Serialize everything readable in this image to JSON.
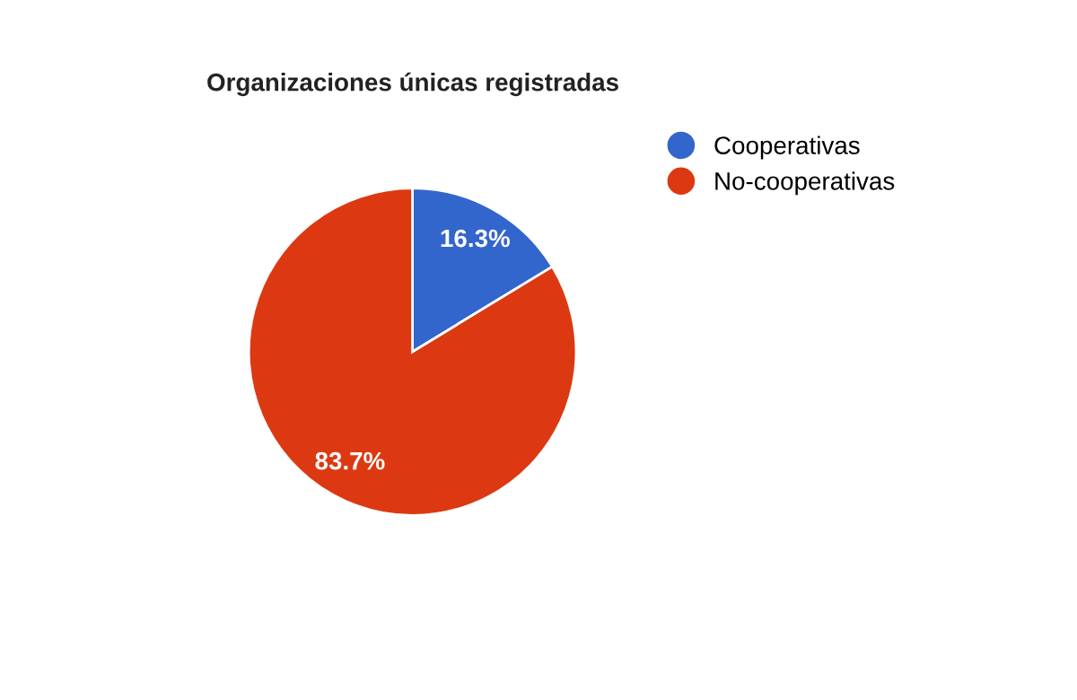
{
  "chart_data": {
    "type": "pie",
    "title": "Organizaciones únicas registradas",
    "categories": [
      "Cooperativas",
      "No-cooperativas"
    ],
    "values": [
      16.3,
      83.7
    ],
    "colors": [
      "#3366cc",
      "#dc3912"
    ],
    "value_labels": [
      "16.3%",
      "83.7%"
    ],
    "legend": "right"
  }
}
